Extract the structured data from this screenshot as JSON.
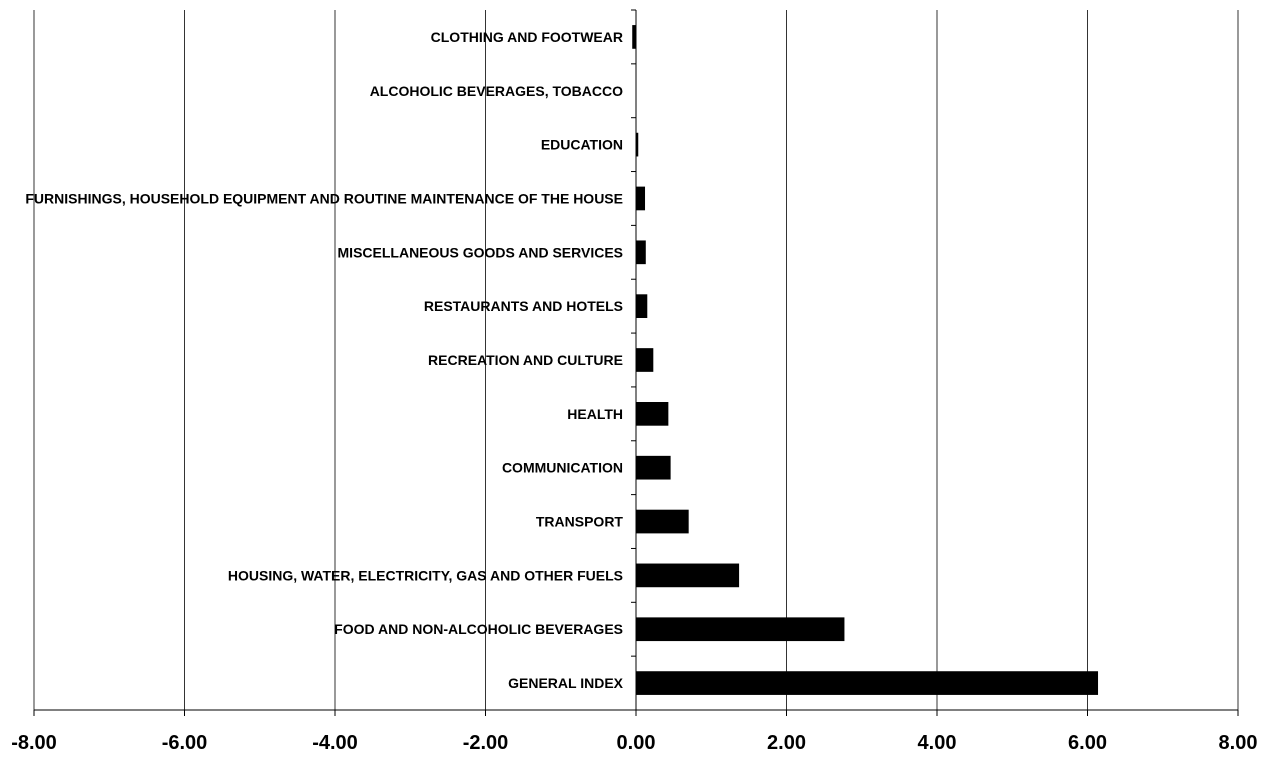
{
  "chart_data": {
    "type": "bar",
    "orientation": "horizontal",
    "title": "",
    "xlabel": "",
    "ylabel": "",
    "xlim": [
      -8,
      8
    ],
    "grid": true,
    "legend": "none",
    "bar_color": "#000000",
    "x_ticks": [
      "-8.00",
      "-6.00",
      "-4.00",
      "-2.00",
      "0.00",
      "2.00",
      "4.00",
      "6.00",
      "8.00"
    ],
    "categories": [
      "CLOTHING AND FOOTWEAR",
      "ALCOHOLIC BEVERAGES, TOBACCO",
      "EDUCATION",
      "FURNISHINGS, HOUSEHOLD EQUIPMENT AND ROUTINE MAINTENANCE OF THE HOUSE",
      "MISCELLANEOUS GOODS AND SERVICES",
      "RESTAURANTS AND HOTELS",
      "RECREATION AND CULTURE",
      "HEALTH",
      "COMMUNICATION",
      "TRANSPORT",
      "HOUSING, WATER, ELECTRICITY, GAS AND OTHER FUELS",
      "FOOD AND NON-ALCOHOLIC BEVERAGES",
      "GENERAL INDEX"
    ],
    "values": [
      -0.05,
      0.0,
      0.03,
      0.12,
      0.13,
      0.15,
      0.23,
      0.43,
      0.46,
      0.7,
      1.37,
      2.77,
      6.14
    ]
  }
}
